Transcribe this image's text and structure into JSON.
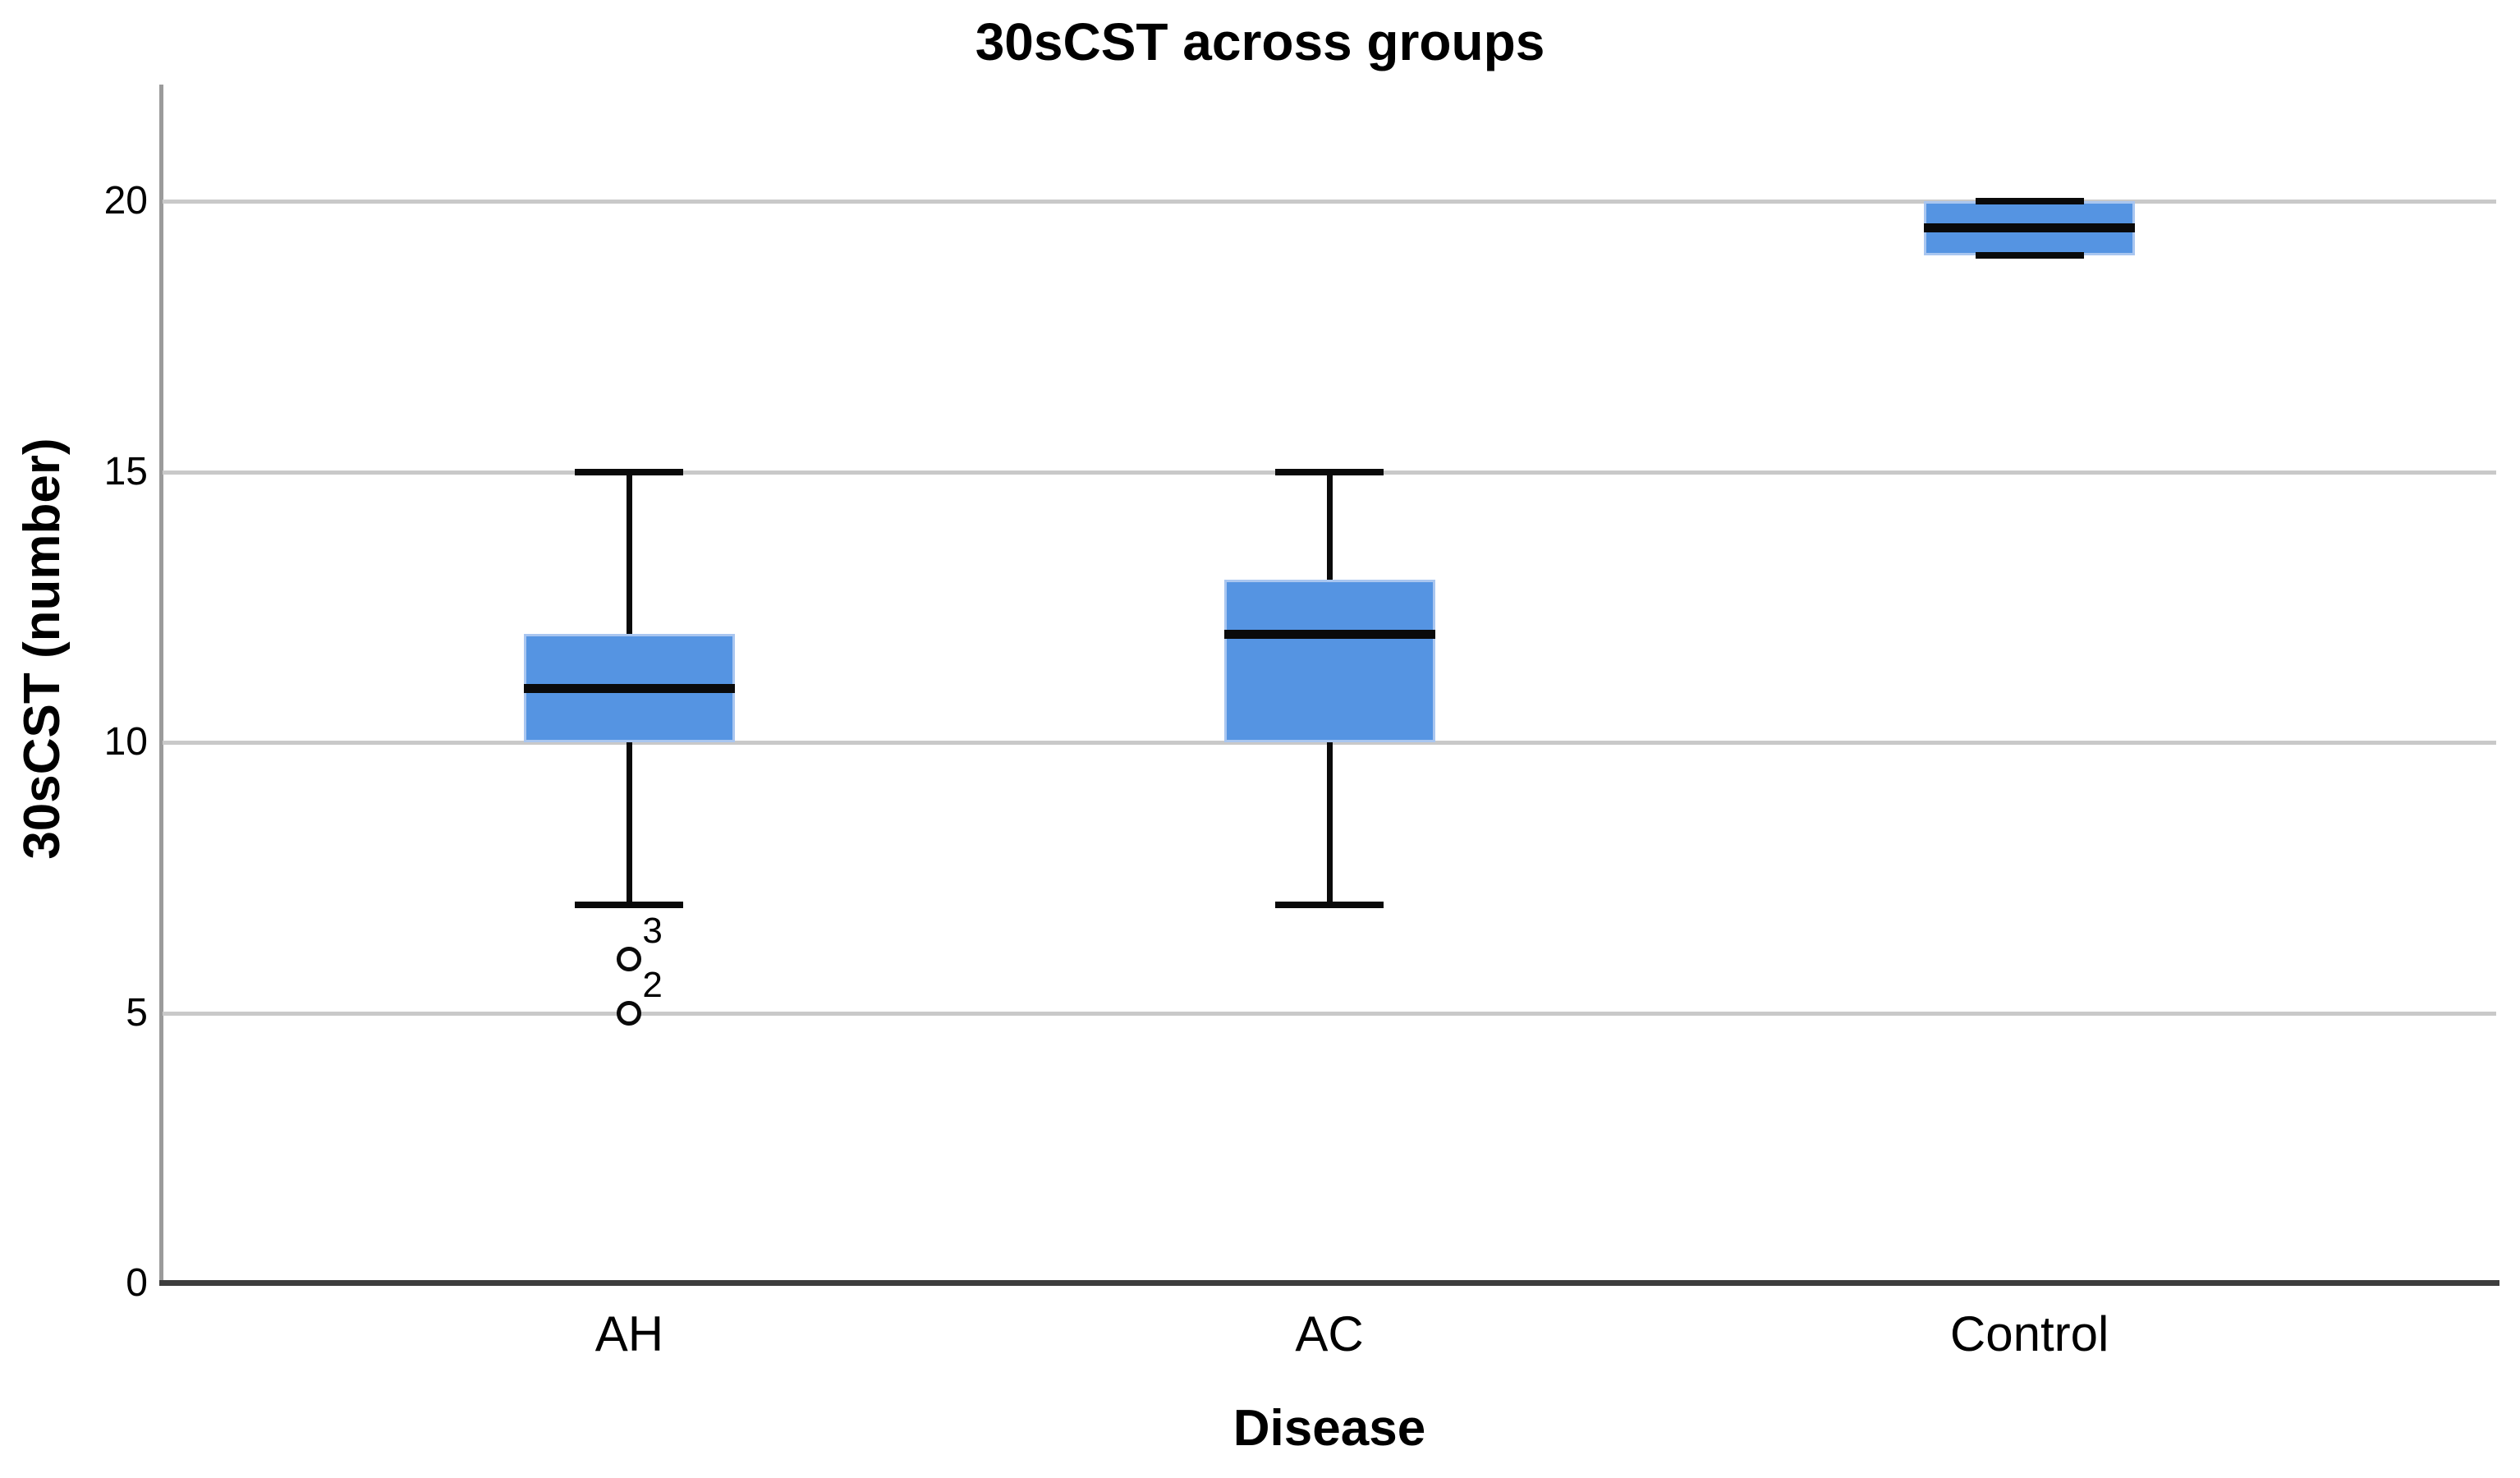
{
  "title": "30sCST across groups",
  "y_axis": {
    "label": "30sCST (number)",
    "tick_labels": [
      "0",
      "5",
      "10",
      "15",
      "20"
    ]
  },
  "x_axis": {
    "label": "Disease",
    "categories": [
      "AH",
      "AC",
      "Control"
    ]
  },
  "colors": {
    "box_fill": "#5594E2",
    "box_edge": "#A9C6F0",
    "whisker_and_median": "#0A0A0A",
    "gridline": "#C9C9C9",
    "y_axis_line": "#9B9B9B",
    "x_axis_line": "#3D3D3D",
    "text": "#000000",
    "background": "#FFFFFF"
  },
  "chart_data": {
    "type": "boxplot",
    "title": "30sCST across groups",
    "xlabel": "Disease",
    "ylabel": "30sCST (number)",
    "categories": [
      "AH",
      "AC",
      "Control"
    ],
    "ylim": [
      0,
      22.2
    ],
    "yticks": [
      0,
      5,
      10,
      15,
      20
    ],
    "grid": "horizontal",
    "legend": "none",
    "series": [
      {
        "name": "AH",
        "whisker_low": 7,
        "q1": 10,
        "median": 11,
        "q3": 12,
        "whisker_high": 15,
        "outliers": [
          {
            "value": 6,
            "label": "3"
          },
          {
            "value": 5,
            "label": "2"
          }
        ]
      },
      {
        "name": "AC",
        "whisker_low": 7,
        "q1": 10,
        "median": 12,
        "q3": 13,
        "whisker_high": 15,
        "outliers": []
      },
      {
        "name": "Control",
        "whisker_low": 19,
        "q1": 19,
        "median": 19.5,
        "q3": 20,
        "whisker_high": 20,
        "outliers": []
      }
    ]
  }
}
